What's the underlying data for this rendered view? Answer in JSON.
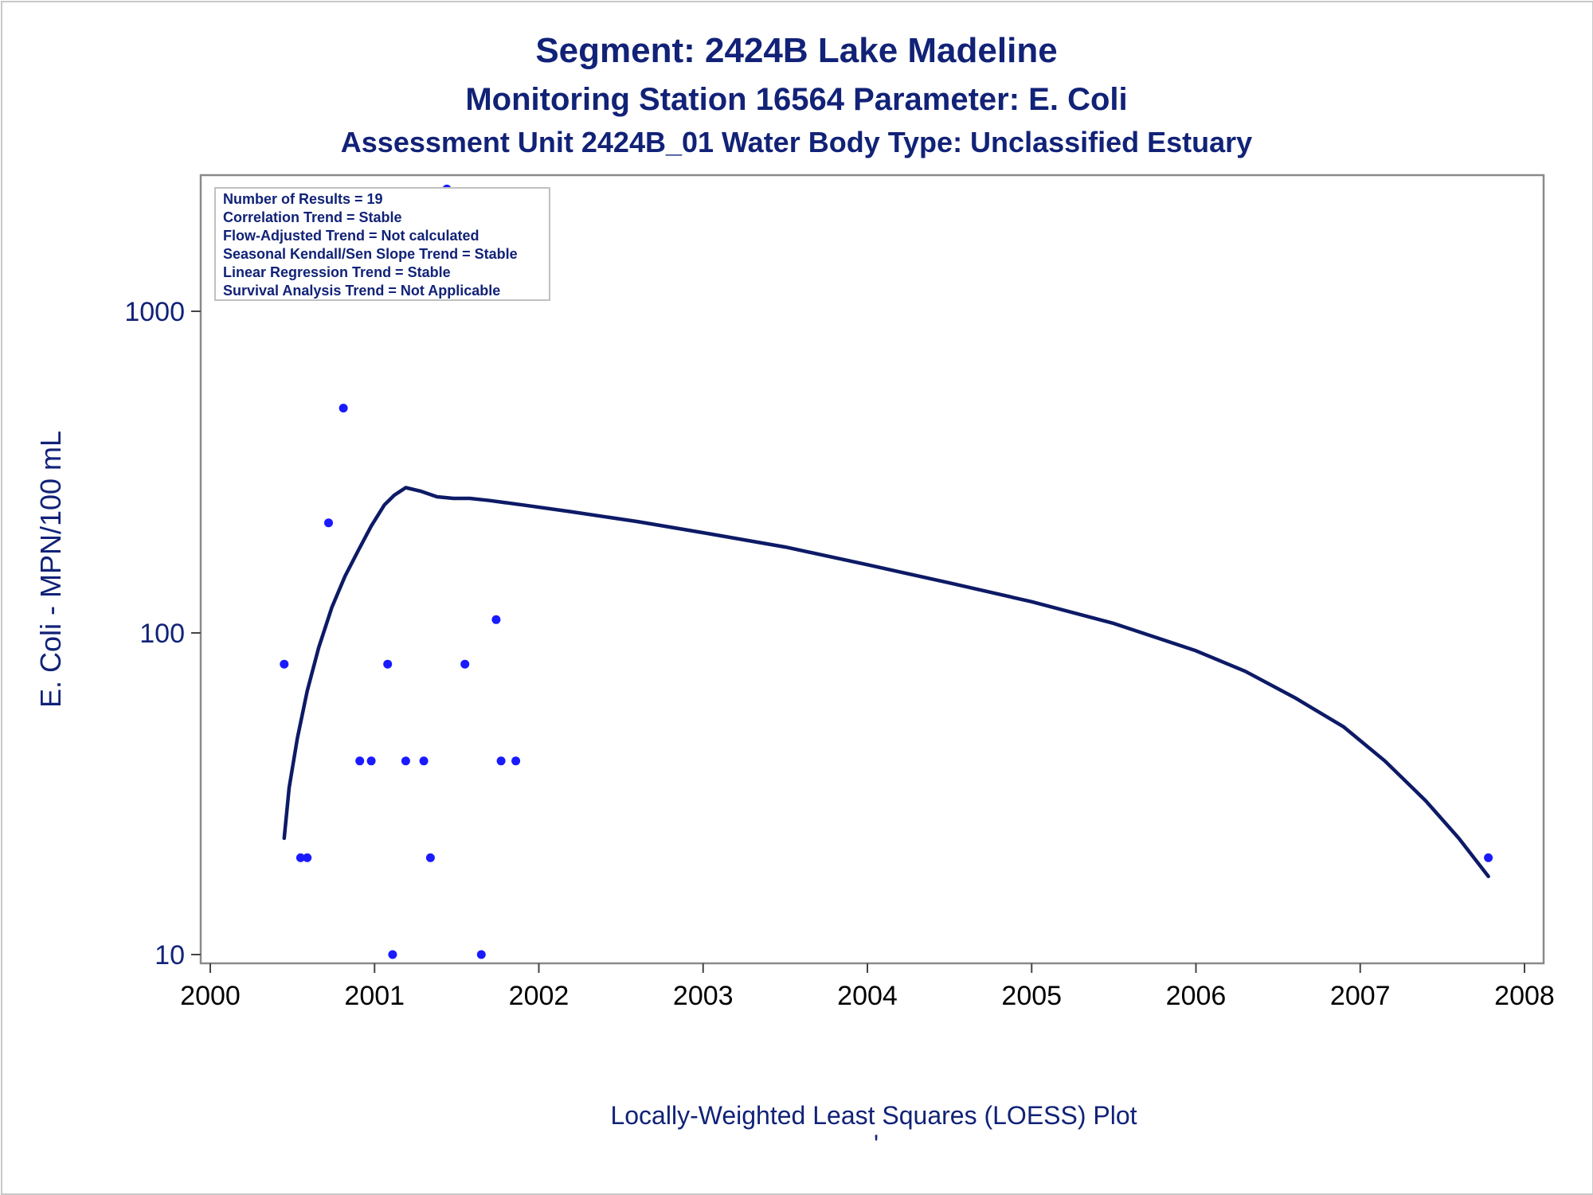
{
  "chart_data": {
    "type": "scatter",
    "title": "Segment: 2424B  Lake Madeline",
    "subtitle": "Monitoring Station 16564 Parameter: E. Coli",
    "subtitle2": "Assessment Unit 2424B_01   Water Body Type: Unclassified Estuary",
    "ylabel": "E. Coli - MPN/100 mL",
    "xlabel": "Locally-Weighted Least Squares (LOESS) Plot",
    "footnote": "'",
    "xlim": [
      2000,
      2008
    ],
    "ylim": [
      9,
      2500
    ],
    "yscale": "log",
    "xticks": [
      "2000",
      "2001",
      "2002",
      "2003",
      "2004",
      "2005",
      "2006",
      "2007",
      "2008"
    ],
    "yticks": [
      "10",
      "100",
      "1000"
    ],
    "info_box": [
      "Number of Results = 19",
      "Correlation Trend = Stable",
      "Flow-Adjusted Trend = Not calculated",
      "Seasonal Kendall/Sen Slope Trend = Stable",
      "Linear Regression Trend = Stable",
      "Survival Analysis Trend = Not Applicable"
    ],
    "info_box_position": "top-left",
    "grid": false,
    "colors": {
      "points": "#1a1aff",
      "loess": "#0d1a66",
      "text": "#112277"
    },
    "points": [
      {
        "x": 2000.45,
        "y": 80
      },
      {
        "x": 2000.55,
        "y": 20
      },
      {
        "x": 2000.59,
        "y": 20
      },
      {
        "x": 2000.72,
        "y": 220
      },
      {
        "x": 2000.81,
        "y": 500
      },
      {
        "x": 2000.91,
        "y": 40
      },
      {
        "x": 2000.98,
        "y": 40
      },
      {
        "x": 2001.08,
        "y": 80
      },
      {
        "x": 2001.11,
        "y": 10
      },
      {
        "x": 2001.19,
        "y": 40
      },
      {
        "x": 2001.3,
        "y": 40
      },
      {
        "x": 2001.34,
        "y": 20
      },
      {
        "x": 2001.44,
        "y": 2400
      },
      {
        "x": 2001.55,
        "y": 80
      },
      {
        "x": 2001.65,
        "y": 10
      },
      {
        "x": 2001.74,
        "y": 110
      },
      {
        "x": 2001.77,
        "y": 40
      },
      {
        "x": 2001.86,
        "y": 40
      },
      {
        "x": 2007.78,
        "y": 20
      }
    ],
    "loess": {
      "x": [
        2000.45,
        2000.48,
        2000.53,
        2000.59,
        2000.66,
        2000.74,
        2000.82,
        2000.9,
        2000.98,
        2001.06,
        2001.12,
        2001.19,
        2001.28,
        2001.38,
        2001.48,
        2001.58,
        2001.7,
        2001.9,
        2002.2,
        2002.6,
        2003.0,
        2003.5,
        2004.0,
        2004.5,
        2005.0,
        2005.5,
        2006.0,
        2006.3,
        2006.6,
        2006.9,
        2007.15,
        2007.4,
        2007.6,
        2007.78
      ],
      "y": [
        23,
        33,
        47,
        66,
        90,
        120,
        150,
        180,
        215,
        250,
        268,
        283,
        276,
        265,
        262,
        262,
        258,
        250,
        238,
        222,
        205,
        185,
        163,
        143,
        125,
        107,
        88,
        76,
        63,
        51,
        40,
        30,
        23,
        17.5
      ]
    }
  }
}
